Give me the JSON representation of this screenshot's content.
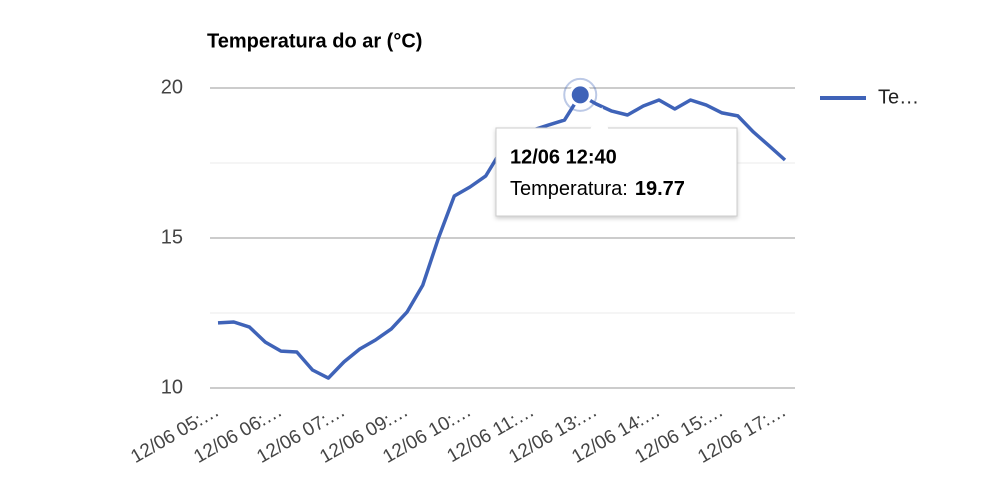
{
  "chart_data": {
    "type": "line",
    "title": "Temperatura do ar (°C)",
    "categories": [
      "12/06 05:…",
      null,
      null,
      null,
      "12/06 06:…",
      null,
      null,
      null,
      "12/06 07:…",
      null,
      null,
      null,
      "12/06 09:…",
      null,
      null,
      null,
      "12/06 10:…",
      null,
      null,
      null,
      "12/06 11:…",
      null,
      null,
      null,
      "12/06 13:…",
      null,
      null,
      null,
      "12/06 14:…",
      null,
      null,
      null,
      "12/06 15:…",
      null,
      null,
      null,
      "12/06 17:…"
    ],
    "series": [
      {
        "name": "Te…",
        "color": "#3f63b8",
        "values": [
          12.17,
          12.2,
          12.03,
          11.53,
          11.23,
          11.2,
          10.6,
          10.33,
          10.87,
          11.3,
          11.6,
          11.97,
          12.53,
          13.43,
          15.0,
          16.4,
          16.7,
          17.07,
          17.93,
          18.3,
          18.6,
          18.77,
          18.93,
          19.77,
          19.47,
          19.23,
          19.1,
          19.4,
          19.6,
          19.3,
          19.6,
          19.43,
          19.17,
          19.07,
          18.53,
          18.07,
          17.6
        ]
      }
    ],
    "ylim": [
      10,
      20
    ],
    "yticks": [
      10,
      15,
      20
    ],
    "minor_yticks": [
      12.5,
      17.5
    ],
    "grid": true,
    "legend": "right",
    "tooltip": {
      "title": "12/06 12:40",
      "label": "Temperatura:",
      "value": 19.77
    }
  }
}
